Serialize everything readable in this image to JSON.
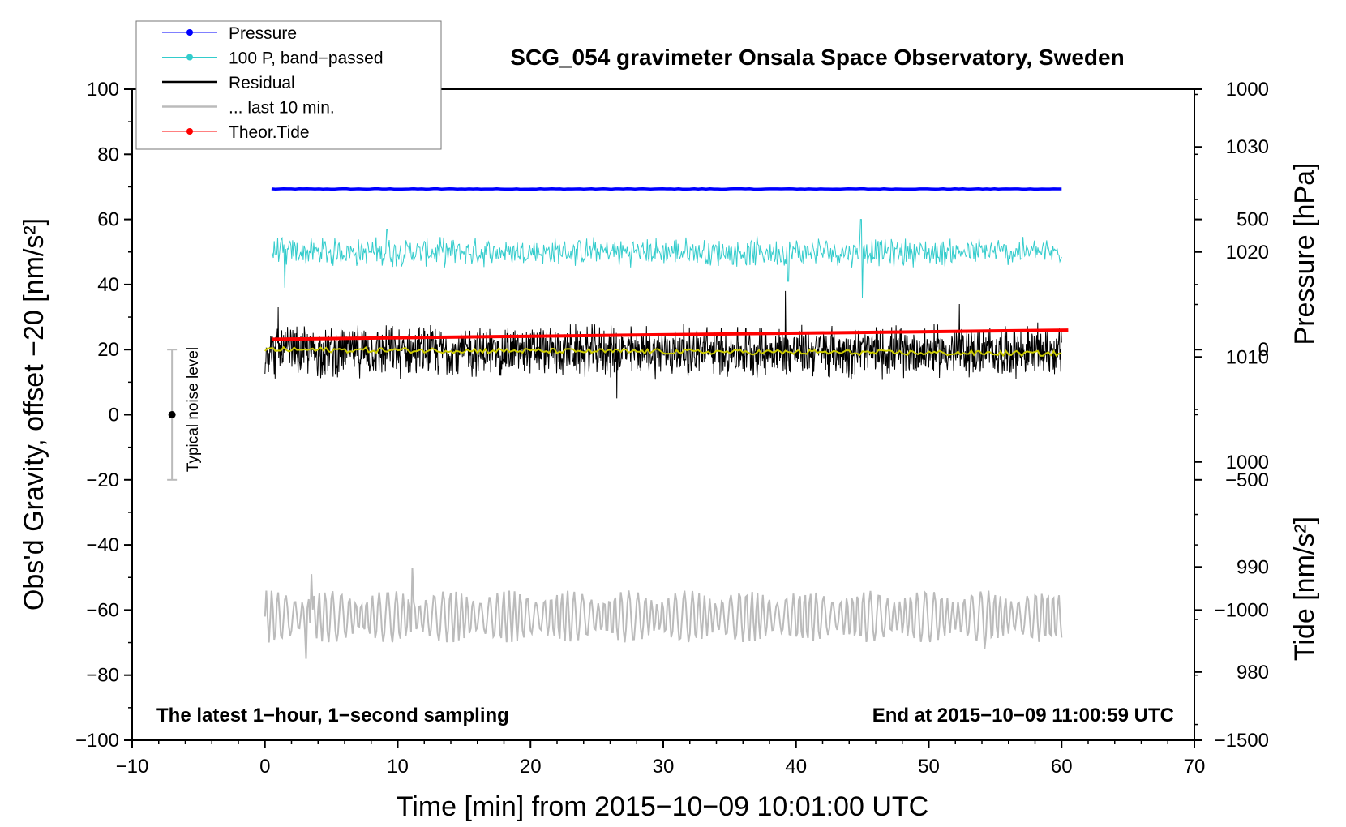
{
  "chart_data": {
    "type": "line",
    "title": "SCG_054 gravimeter Onsala Space Observatory, Sweden",
    "xlabel": "Time [min] from 2015−10−09 10:01:00 UTC",
    "ylabel_left": "Obs'd Gravity, offset −20 [nm/s²]",
    "ylabel_right_top": "Pressure [hPa]",
    "ylabel_right_bottom": "Tide [nm/s²]",
    "xlim": [
      -10,
      70
    ],
    "ylim": [
      -100,
      100
    ],
    "pressure_axis_range": [
      973.5,
      1035.5
    ],
    "tide_axis_range": [
      -1500,
      1000
    ],
    "x_ticks": [
      {
        "v": -10,
        "label": "−10"
      },
      {
        "v": 0,
        "label": "0"
      },
      {
        "v": 10,
        "label": "10"
      },
      {
        "v": 20,
        "label": "20"
      },
      {
        "v": 30,
        "label": "30"
      },
      {
        "v": 40,
        "label": "40"
      },
      {
        "v": 50,
        "label": "50"
      },
      {
        "v": 60,
        "label": "60"
      },
      {
        "v": 70,
        "label": "70"
      }
    ],
    "y_ticks_left": [
      {
        "v": 100,
        "label": "100"
      },
      {
        "v": 80,
        "label": "80"
      },
      {
        "v": 60,
        "label": "60"
      },
      {
        "v": 40,
        "label": "40"
      },
      {
        "v": 20,
        "label": "20"
      },
      {
        "v": 0,
        "label": "0"
      },
      {
        "v": -20,
        "label": "−20"
      },
      {
        "v": -40,
        "label": "−40"
      },
      {
        "v": -60,
        "label": "−60"
      },
      {
        "v": -80,
        "label": "−80"
      },
      {
        "v": -100,
        "label": "−100"
      }
    ],
    "y_ticks_pressure": [
      {
        "v": 1030,
        "label": "1030"
      },
      {
        "v": 1020,
        "label": "1020"
      },
      {
        "v": 1010,
        "label": "1010"
      },
      {
        "v": 1000,
        "label": "1000"
      },
      {
        "v": 990,
        "label": "990"
      },
      {
        "v": 980,
        "label": "980"
      }
    ],
    "y_ticks_tide": [
      {
        "v": 1000,
        "label": "1000"
      },
      {
        "v": 500,
        "label": "500"
      },
      {
        "v": 0,
        "label": "0"
      },
      {
        "v": -500,
        "label": "−500"
      },
      {
        "v": -1000,
        "label": "−1000"
      },
      {
        "v": -1500,
        "label": "−1500"
      }
    ],
    "legend": [
      {
        "name": "Pressure",
        "color": "#0000ff",
        "marker": true
      },
      {
        "name": "100 P, band−passed",
        "color": "#33cccc",
        "marker": true
      },
      {
        "name": "Residual",
        "color": "#000000",
        "marker": false
      },
      {
        "name": "... last 10 min.",
        "color": "#bbbbbb",
        "marker": false
      },
      {
        "name": "Theor.Tide",
        "color": "#ff0000",
        "marker": true
      }
    ],
    "series": [
      {
        "name": "Pressure",
        "color": "#0000ff",
        "axis": "pressure",
        "x_range": [
          0.5,
          60
        ],
        "start": 1026.0,
        "end": 1026.0,
        "noise": 0.05
      },
      {
        "name": "100 P, band−passed",
        "color": "#33cccc",
        "axis": "left",
        "x_range": [
          0.5,
          60
        ],
        "center": 50,
        "noise_amplitude": 5,
        "spikes": [
          {
            "x": 44.9,
            "value": 60
          },
          {
            "x": 45.0,
            "value": 36
          },
          {
            "x": 9.2,
            "value": 57
          },
          {
            "x": 39.4,
            "value": 41
          },
          {
            "x": 1.5,
            "value": 39
          }
        ]
      },
      {
        "name": "Residual",
        "color": "#000000",
        "axis": "left",
        "x_range": [
          0,
          60
        ],
        "center": 19.5,
        "noise_amplitude": 9,
        "spikes": [
          {
            "x": 39.2,
            "value": 38
          },
          {
            "x": 26.5,
            "value": 5
          },
          {
            "x": 1.0,
            "value": 33
          },
          {
            "x": 52.3,
            "value": 34
          }
        ]
      },
      {
        "name": "Residual smoothed",
        "color": "#cccc00",
        "axis": "left",
        "x_range": [
          0,
          60
        ],
        "start": 20.0,
        "end": 18.8,
        "noise_amplitude": 0.8
      },
      {
        "name": "... last 10 min.",
        "color": "#bbbbbb",
        "axis": "left",
        "x_range": [
          0,
          60
        ],
        "center": -62,
        "noise_amplitude": 8,
        "spikes": [
          {
            "x": 11.1,
            "value": -47
          },
          {
            "x": 3.1,
            "value": -75
          },
          {
            "x": 3.5,
            "value": -49
          },
          {
            "x": 54.2,
            "value": -72
          }
        ]
      },
      {
        "name": "Theor.Tide",
        "color": "#ff0000",
        "axis": "tide",
        "x_range": [
          0.5,
          60.5
        ],
        "start": 40,
        "end": 75
      },
      {
        "name": "Typical noise level",
        "color": "#bbbbbb",
        "axis": "left",
        "x": -7,
        "value": 0,
        "error": 20
      }
    ],
    "annotations": {
      "bottom_left": "The latest 1−hour, 1−second sampling",
      "bottom_right": "End at 2015−10−09 11:00:59 UTC",
      "noise_label": "Typical noise level"
    }
  }
}
